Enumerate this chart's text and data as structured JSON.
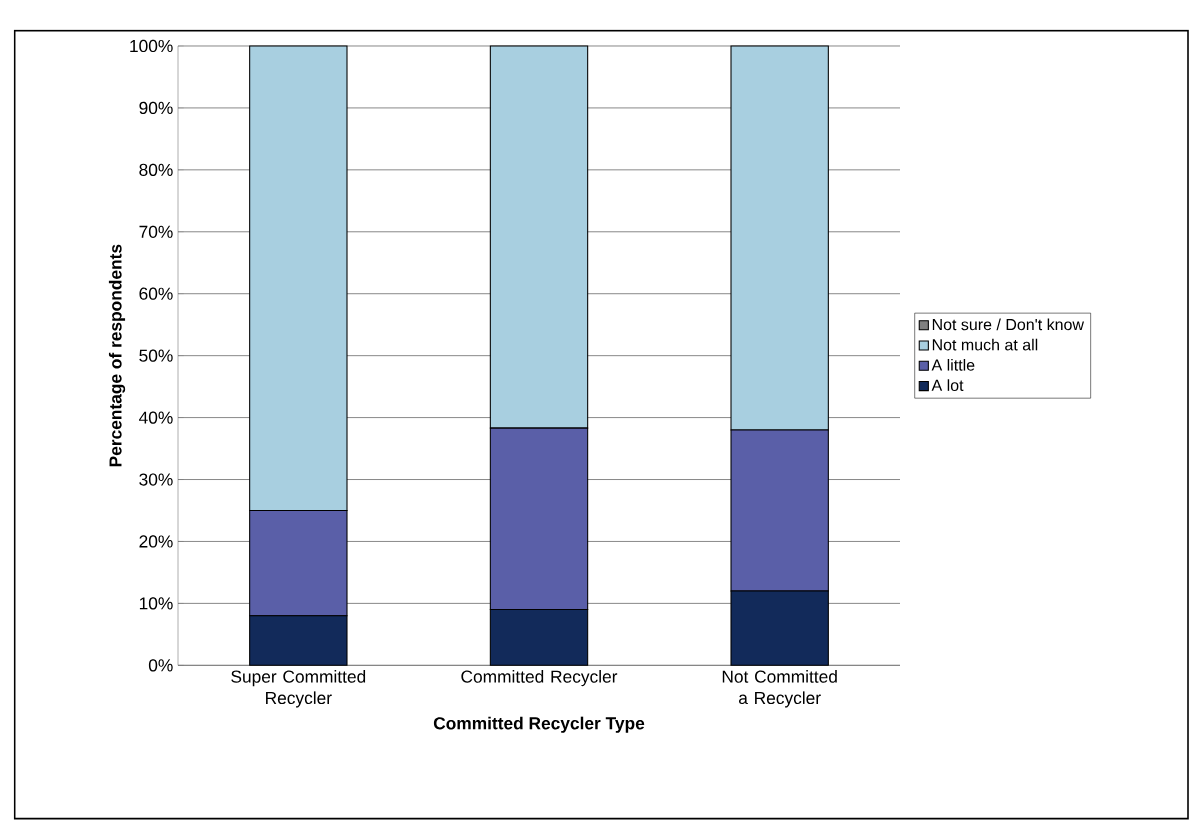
{
  "chart_data": {
    "type": "bar",
    "stacked": true,
    "xlabel": "Committed Recycler Type",
    "ylabel": "Percentage of respondents",
    "categories": [
      "Super Committed Recycler",
      "Committed Recycler",
      "Not Committed a Recycler"
    ],
    "series": [
      {
        "name": "A lot",
        "color": "#122a5a",
        "values": [
          8,
          9,
          12
        ]
      },
      {
        "name": "A little",
        "color": "#5a5fa8",
        "values": [
          17,
          29.3,
          26
        ]
      },
      {
        "name": "Not much at all",
        "color": "#a8cfe0",
        "values": [
          75,
          61.7,
          62
        ]
      },
      {
        "name": "Not sure / Don't know",
        "color": "#808080",
        "values": [
          0,
          0,
          0
        ]
      }
    ],
    "ylim": [
      0,
      100
    ],
    "yticks": [
      {
        "value": 0,
        "label": "0%"
      },
      {
        "value": 10,
        "label": "10%"
      },
      {
        "value": 20,
        "label": "20%"
      },
      {
        "value": 30,
        "label": "30%"
      },
      {
        "value": 40,
        "label": "40%"
      },
      {
        "value": 50,
        "label": "50%"
      },
      {
        "value": 60,
        "label": "60%"
      },
      {
        "value": 70,
        "label": "70%"
      },
      {
        "value": 80,
        "label": "80%"
      },
      {
        "value": 90,
        "label": "90%"
      },
      {
        "value": 100,
        "label": "100%"
      }
    ],
    "grid": "y",
    "legend": "right"
  }
}
